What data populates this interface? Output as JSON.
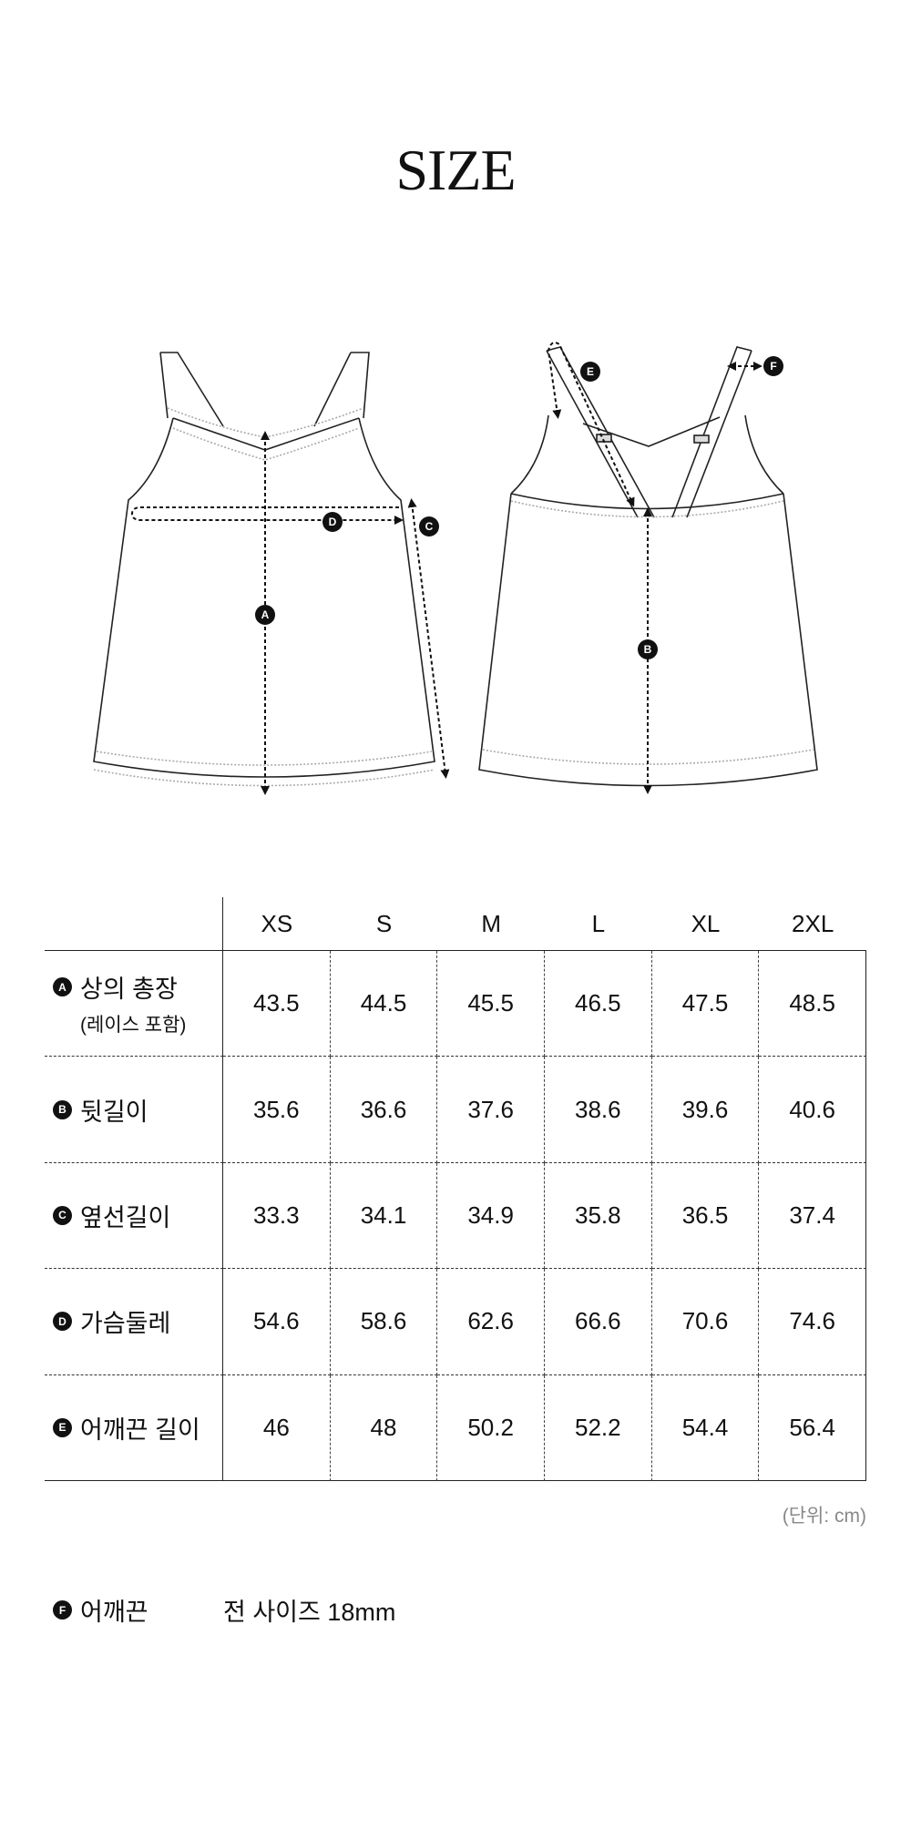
{
  "title": "SIZE",
  "diagram": {
    "markers": [
      "A",
      "B",
      "C",
      "D",
      "E",
      "F"
    ]
  },
  "table": {
    "columns": [
      "XS",
      "S",
      "M",
      "L",
      "XL",
      "2XL"
    ],
    "rows": [
      {
        "badge": "A",
        "label": "상의 총장",
        "sublabel": "(레이스 포함)",
        "values": [
          "43.5",
          "44.5",
          "45.5",
          "46.5",
          "47.5",
          "48.5"
        ]
      },
      {
        "badge": "B",
        "label": "뒷길이",
        "values": [
          "35.6",
          "36.6",
          "37.6",
          "38.6",
          "39.6",
          "40.6"
        ]
      },
      {
        "badge": "C",
        "label": "옆선길이",
        "values": [
          "33.3",
          "34.1",
          "34.9",
          "35.8",
          "36.5",
          "37.4"
        ]
      },
      {
        "badge": "D",
        "label": "가슴둘레",
        "values": [
          "54.6",
          "58.6",
          "62.6",
          "66.6",
          "70.6",
          "74.6"
        ]
      },
      {
        "badge": "E",
        "label": "어깨끈 길이",
        "values": [
          "46",
          "48",
          "50.2",
          "52.2",
          "54.4",
          "56.4"
        ]
      }
    ]
  },
  "unit_note": "(단위: cm)",
  "strap_note": {
    "badge": "F",
    "label": "어깨끈",
    "value": "전 사이즈 18mm"
  }
}
